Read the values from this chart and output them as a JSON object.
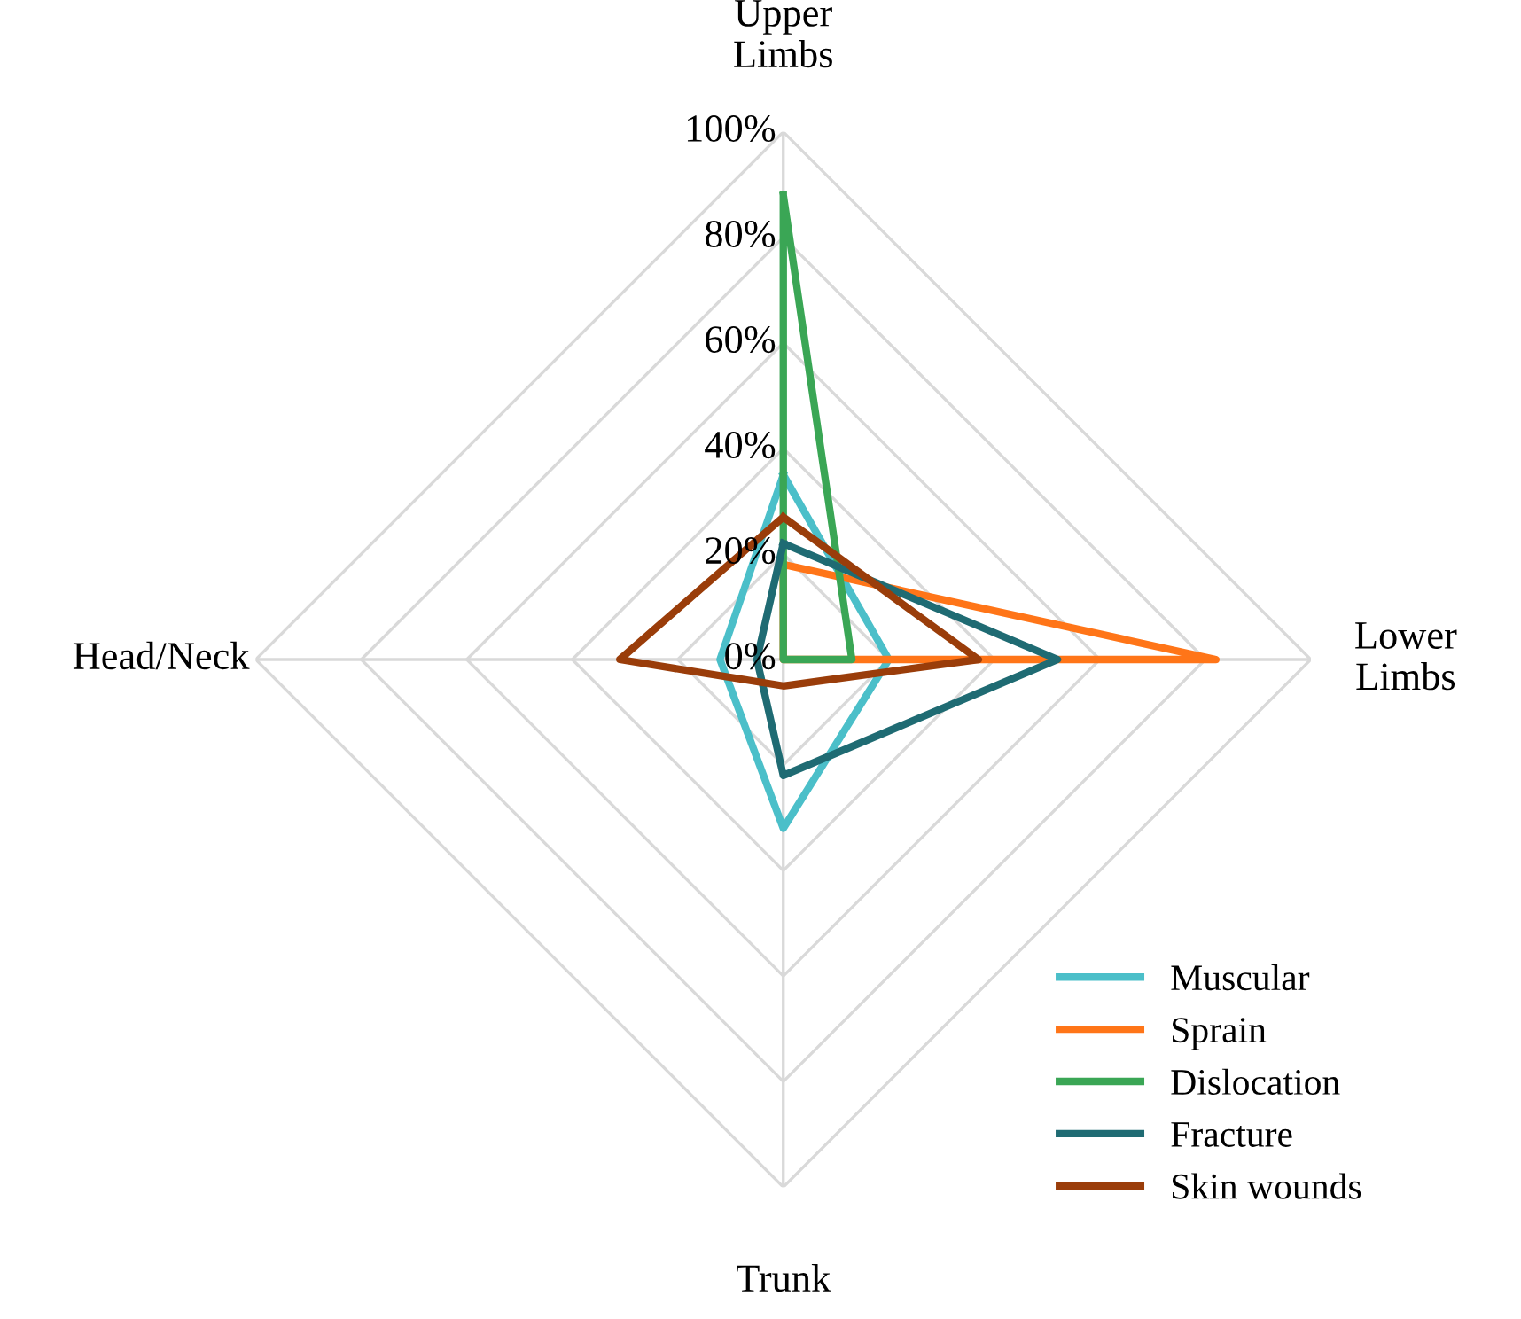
{
  "chart_data": {
    "type": "radar",
    "categories": [
      "Upper\nLimbs",
      "Lower\nLimbs",
      "Trunk",
      "Head/Neck"
    ],
    "series": [
      {
        "name": "Muscular",
        "color": "#4bbfc9",
        "values": [
          35,
          20,
          32,
          12
        ]
      },
      {
        "name": "Sprain",
        "color": "#ff7518",
        "values": [
          18,
          82,
          0,
          0
        ]
      },
      {
        "name": "Dislocation",
        "color": "#3aa655",
        "values": [
          88,
          13,
          0,
          0
        ]
      },
      {
        "name": "Fracture",
        "color": "#1f6b73",
        "values": [
          22,
          52,
          22,
          5
        ]
      },
      {
        "name": "Skin wounds",
        "color": "#9a3d0a",
        "values": [
          27,
          37,
          5,
          31
        ]
      }
    ],
    "ylim": [
      0,
      100
    ],
    "yticks": [
      {
        "value": 0,
        "label": "0%"
      },
      {
        "value": 20,
        "label": "20%"
      },
      {
        "value": 40,
        "label": "40%"
      },
      {
        "value": 60,
        "label": "60%"
      },
      {
        "value": 80,
        "label": "80%"
      },
      {
        "value": 100,
        "label": "100%"
      }
    ],
    "grid": true,
    "legend": "bottom right",
    "line_style": "solid",
    "marker": "none"
  }
}
